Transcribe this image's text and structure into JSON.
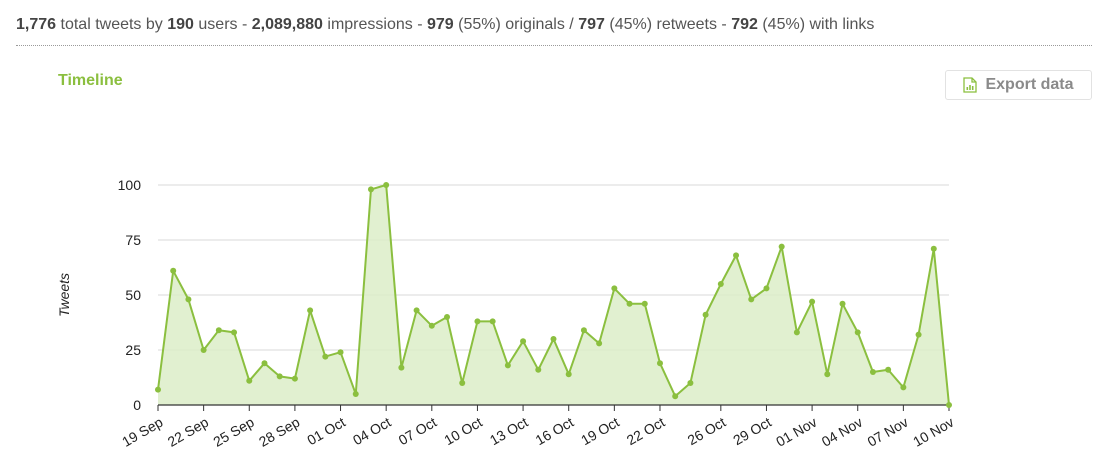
{
  "summary": {
    "total_tweets": "1,776",
    "total_tweets_label": "total tweets by",
    "users": "190",
    "users_label": "users -",
    "impressions": "2,089,880",
    "impressions_label": "impressions -",
    "originals": "979",
    "originals_label": "(55%) originals /",
    "retweets": "797",
    "retweets_label": "(45%) retweets -",
    "links": "792",
    "links_label": "(45%) with links"
  },
  "section": {
    "title": "Timeline"
  },
  "toolbar": {
    "export_label": "Export data",
    "export_icon": "document-chart-icon"
  },
  "colors": {
    "accent": "#8bbf3f",
    "fill": "#dcedc8",
    "grid": "#d8d8d8"
  },
  "chart_data": {
    "type": "area",
    "ylabel": "Tweets",
    "xlabel": "",
    "ylim": [
      0,
      100
    ],
    "yticks": [
      0,
      25,
      50,
      75,
      100
    ],
    "grid": "horizontal",
    "x_tick_labels": [
      "19 Sep",
      "22 Sep",
      "25 Sep",
      "28 Sep",
      "01 Oct",
      "04 Oct",
      "07 Oct",
      "10 Oct",
      "13 Oct",
      "16 Oct",
      "19 Oct",
      "22 Oct",
      "26 Oct",
      "29 Oct",
      "01 Nov",
      "04 Nov",
      "07 Nov",
      "10 Nov"
    ],
    "x": [
      "19 Sep",
      "20 Sep",
      "21 Sep",
      "22 Sep",
      "23 Sep",
      "24 Sep",
      "25 Sep",
      "26 Sep",
      "27 Sep",
      "28 Sep",
      "29 Sep",
      "30 Sep",
      "01 Oct",
      "02 Oct",
      "03 Oct",
      "04 Oct",
      "05 Oct",
      "06 Oct",
      "07 Oct",
      "08 Oct",
      "09 Oct",
      "10 Oct",
      "11 Oct",
      "12 Oct",
      "13 Oct",
      "14 Oct",
      "15 Oct",
      "16 Oct",
      "17 Oct",
      "18 Oct",
      "19 Oct",
      "20 Oct",
      "21 Oct",
      "22 Oct",
      "23 Oct",
      "24 Oct",
      "25 Oct",
      "26 Oct",
      "27 Oct",
      "28 Oct",
      "29 Oct",
      "30 Oct",
      "31 Oct",
      "01 Nov",
      "02 Nov",
      "03 Nov",
      "04 Nov",
      "05 Nov",
      "06 Nov",
      "07 Nov",
      "08 Nov",
      "09 Nov",
      "10 Nov"
    ],
    "series": [
      {
        "values": [
          7,
          61,
          48,
          25,
          34,
          33,
          11,
          19,
          13,
          12,
          43,
          22,
          24,
          5,
          98,
          100,
          17,
          43,
          36,
          40,
          10,
          38,
          38,
          18,
          29,
          16,
          30,
          14,
          34,
          28,
          53,
          46,
          46,
          19,
          4,
          10,
          41,
          55,
          68,
          48,
          53,
          72,
          33,
          47,
          14,
          46,
          33,
          15,
          16,
          8,
          32,
          71,
          0
        ]
      }
    ]
  }
}
